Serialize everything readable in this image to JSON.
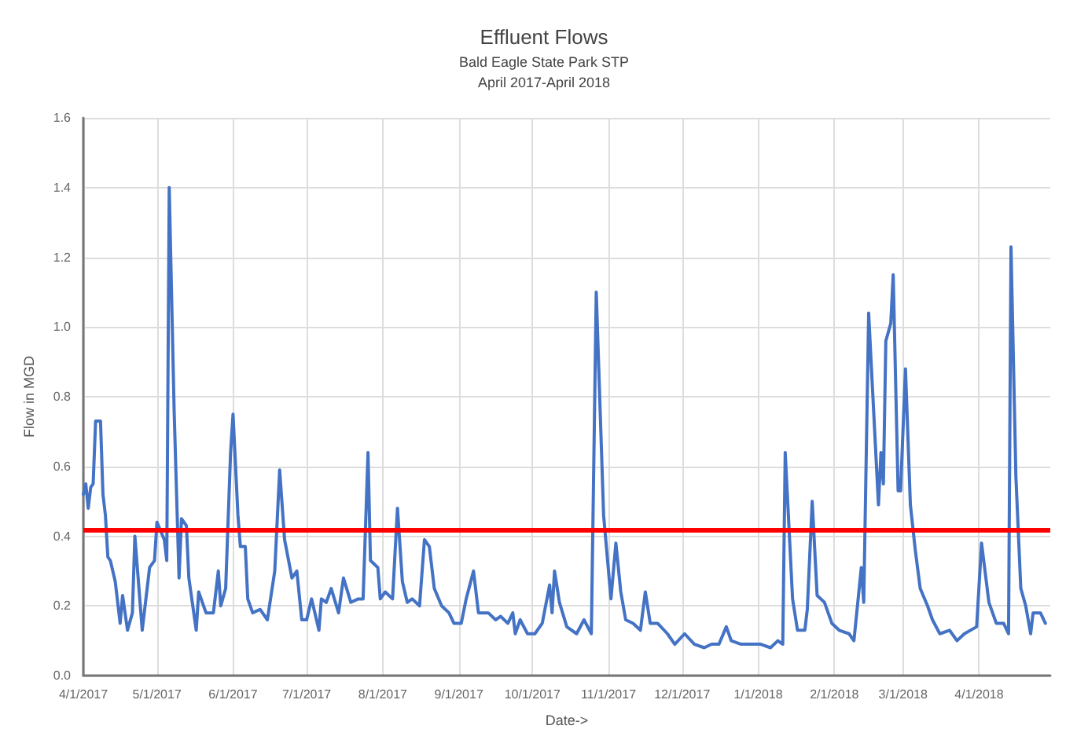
{
  "chart_data": {
    "type": "line",
    "title": "Effluent Flows",
    "subtitle": "Bald Eagle State Park STP\nApril 2017-April 2018",
    "xlabel": "Date->",
    "ylabel": "Flow in MGD",
    "x": [
      "2017-04-01",
      "2017-04-02",
      "2017-04-03",
      "2017-04-04",
      "2017-04-05",
      "2017-04-06",
      "2017-04-08",
      "2017-04-09",
      "2017-04-10",
      "2017-04-11",
      "2017-04-12",
      "2017-04-14",
      "2017-04-16",
      "2017-04-17",
      "2017-04-19",
      "2017-04-21",
      "2017-04-22",
      "2017-04-23",
      "2017-04-25",
      "2017-04-28",
      "2017-04-30",
      "2017-05-01",
      "2017-05-04",
      "2017-05-05",
      "2017-05-06",
      "2017-05-08",
      "2017-05-10",
      "2017-05-11",
      "2017-05-13",
      "2017-05-14",
      "2017-05-17",
      "2017-05-18",
      "2017-05-21",
      "2017-05-24",
      "2017-05-26",
      "2017-05-27",
      "2017-05-29",
      "2017-05-31",
      "2017-06-01",
      "2017-06-03",
      "2017-06-04",
      "2017-06-06",
      "2017-06-07",
      "2017-06-09",
      "2017-06-12",
      "2017-06-15",
      "2017-06-18",
      "2017-06-20",
      "2017-06-22",
      "2017-06-25",
      "2017-06-27",
      "2017-06-29",
      "2017-07-01",
      "2017-07-03",
      "2017-07-06",
      "2017-07-07",
      "2017-07-09",
      "2017-07-11",
      "2017-07-14",
      "2017-07-16",
      "2017-07-19",
      "2017-07-22",
      "2017-07-24",
      "2017-07-26",
      "2017-07-27",
      "2017-07-30",
      "2017-07-31",
      "2017-08-02",
      "2017-08-05",
      "2017-08-07",
      "2017-08-09",
      "2017-08-11",
      "2017-08-13",
      "2017-08-16",
      "2017-08-18",
      "2017-08-20",
      "2017-08-22",
      "2017-08-25",
      "2017-08-28",
      "2017-08-30",
      "2017-09-02",
      "2017-09-04",
      "2017-09-07",
      "2017-09-09",
      "2017-09-13",
      "2017-09-16",
      "2017-09-18",
      "2017-09-21",
      "2017-09-23",
      "2017-09-24",
      "2017-09-26",
      "2017-09-29",
      "2017-10-02",
      "2017-10-05",
      "2017-10-08",
      "2017-10-09",
      "2017-10-10",
      "2017-10-12",
      "2017-10-15",
      "2017-10-19",
      "2017-10-22",
      "2017-10-25",
      "2017-10-27",
      "2017-10-30",
      "2017-11-02",
      "2017-11-04",
      "2017-11-06",
      "2017-11-08",
      "2017-11-11",
      "2017-11-14",
      "2017-11-16",
      "2017-11-18",
      "2017-11-21",
      "2017-11-25",
      "2017-11-28",
      "2017-12-02",
      "2017-12-06",
      "2017-12-10",
      "2017-12-13",
      "2017-12-16",
      "2017-12-19",
      "2017-12-21",
      "2017-12-25",
      "2017-12-27",
      "2018-01-02",
      "2018-01-06",
      "2018-01-09",
      "2018-01-11",
      "2018-01-12",
      "2018-01-15",
      "2018-01-17",
      "2018-01-20",
      "2018-01-21",
      "2018-01-23",
      "2018-01-25",
      "2018-01-28",
      "2018-01-31",
      "2018-02-03",
      "2018-02-07",
      "2018-02-09",
      "2018-02-12",
      "2018-02-13",
      "2018-02-15",
      "2018-02-16",
      "2018-02-19",
      "2018-02-20",
      "2018-02-21",
      "2018-02-22",
      "2018-02-24",
      "2018-02-25",
      "2018-02-27",
      "2018-02-28",
      "2018-03-02",
      "2018-03-04",
      "2018-03-06",
      "2018-03-08",
      "2018-03-11",
      "2018-03-13",
      "2018-03-16",
      "2018-03-20",
      "2018-03-23",
      "2018-03-26",
      "2018-03-31",
      "2018-04-02",
      "2018-04-05",
      "2018-04-08",
      "2018-04-11",
      "2018-04-13",
      "2018-04-14",
      "2018-04-16",
      "2018-04-18",
      "2018-04-20",
      "2018-04-22",
      "2018-04-23",
      "2018-04-26",
      "2018-04-28"
    ],
    "series": [
      {
        "color": "#4472c4",
        "values": [
          0.52,
          0.55,
          0.48,
          0.54,
          0.55,
          0.73,
          0.73,
          0.52,
          0.46,
          0.34,
          0.33,
          0.27,
          0.15,
          0.23,
          0.13,
          0.18,
          0.4,
          0.31,
          0.13,
          0.31,
          0.33,
          0.44,
          0.39,
          0.33,
          1.4,
          0.76,
          0.28,
          0.45,
          0.43,
          0.28,
          0.13,
          0.24,
          0.18,
          0.18,
          0.3,
          0.2,
          0.25,
          0.64,
          0.75,
          0.46,
          0.37,
          0.37,
          0.22,
          0.18,
          0.19,
          0.16,
          0.3,
          0.59,
          0.39,
          0.28,
          0.3,
          0.16,
          0.16,
          0.22,
          0.13,
          0.22,
          0.21,
          0.25,
          0.18,
          0.28,
          0.21,
          0.22,
          0.22,
          0.64,
          0.33,
          0.31,
          0.22,
          0.24,
          0.22,
          0.48,
          0.27,
          0.21,
          0.22,
          0.2,
          0.39,
          0.37,
          0.25,
          0.2,
          0.18,
          0.15,
          0.15,
          0.22,
          0.3,
          0.18,
          0.18,
          0.16,
          0.17,
          0.15,
          0.18,
          0.12,
          0.16,
          0.12,
          0.12,
          0.15,
          0.26,
          0.18,
          0.3,
          0.21,
          0.14,
          0.12,
          0.16,
          0.12,
          1.1,
          0.46,
          0.22,
          0.38,
          0.24,
          0.16,
          0.15,
          0.13,
          0.24,
          0.15,
          0.15,
          0.12,
          0.09,
          0.12,
          0.09,
          0.08,
          0.09,
          0.09,
          0.14,
          0.1,
          0.09,
          0.09,
          0.09,
          0.08,
          0.1,
          0.09,
          0.64,
          0.22,
          0.13,
          0.13,
          0.19,
          0.5,
          0.23,
          0.21,
          0.15,
          0.13,
          0.12,
          0.1,
          0.31,
          0.21,
          1.04,
          0.9,
          0.49,
          0.64,
          0.55,
          0.96,
          1.01,
          1.15,
          0.53,
          0.53,
          0.88,
          0.49,
          0.36,
          0.25,
          0.2,
          0.16,
          0.12,
          0.13,
          0.1,
          0.12,
          0.14,
          0.38,
          0.21,
          0.15,
          0.15,
          0.12,
          1.23,
          0.57,
          0.25,
          0.2,
          0.12,
          0.18,
          0.18,
          0.15
        ]
      }
    ],
    "xlim": [
      "2017-04-01",
      "2018-04-30"
    ],
    "xticks": [
      {
        "value": "2017-04-01",
        "label": "4/1/2017"
      },
      {
        "value": "2017-05-01",
        "label": "5/1/2017"
      },
      {
        "value": "2017-06-01",
        "label": "6/1/2017"
      },
      {
        "value": "2017-07-01",
        "label": "7/1/2017"
      },
      {
        "value": "2017-08-01",
        "label": "8/1/2017"
      },
      {
        "value": "2017-09-01",
        "label": "9/1/2017"
      },
      {
        "value": "2017-10-01",
        "label": "10/1/2017"
      },
      {
        "value": "2017-11-01",
        "label": "11/1/2017"
      },
      {
        "value": "2017-12-01",
        "label": "12/1/2017"
      },
      {
        "value": "2018-01-01",
        "label": "1/1/2018"
      },
      {
        "value": "2018-02-01",
        "label": "2/1/2018"
      },
      {
        "value": "2018-03-01",
        "label": "3/1/2018"
      },
      {
        "value": "2018-04-01",
        "label": "4/1/2018"
      }
    ],
    "ylim": [
      0,
      1.6
    ],
    "yticks": [
      {
        "value": 0,
        "label": "0.0"
      },
      0.2,
      0.4,
      0.6,
      0.8,
      {
        "value": 1,
        "label": "1.0"
      },
      1.2,
      1.4,
      1.6
    ],
    "ref_lines": [
      {
        "axis": "y",
        "value": 0.42,
        "color": "#ff0000"
      }
    ],
    "grid": true,
    "marker": "none",
    "line_style": "solid"
  }
}
